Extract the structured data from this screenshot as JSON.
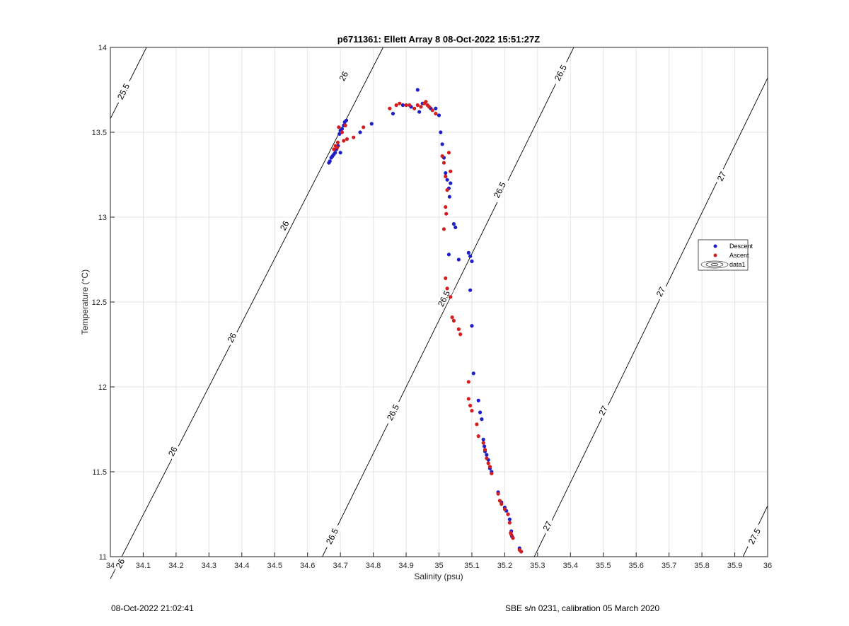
{
  "chart_data": {
    "type": "scatter",
    "title": "p6711361: Ellett Array 8 08-Oct-2022 15:51:27Z",
    "xlabel": "Salinity (psu)",
    "ylabel": "Temperature (°C)",
    "xlim": [
      34,
      36
    ],
    "ylim": [
      11,
      14
    ],
    "xticks": [
      34,
      34.1,
      34.2,
      34.3,
      34.4,
      34.5,
      34.6,
      34.7,
      34.8,
      34.9,
      35,
      35.1,
      35.2,
      35.3,
      35.4,
      35.5,
      35.6,
      35.7,
      35.8,
      35.9,
      36
    ],
    "xtick_labels": [
      "34",
      "34.1",
      "34.2",
      "34.3",
      "34.4",
      "34.5",
      "34.6",
      "34.7",
      "34.8",
      "34.9",
      "35",
      "35.1",
      "35.2",
      "35.3",
      "35.4",
      "35.5",
      "35.6",
      "35.7",
      "35.8",
      "35.9",
      "36"
    ],
    "yticks": [
      11,
      11.5,
      12,
      12.5,
      13,
      13.5,
      14
    ],
    "ytick_labels": [
      "11",
      "11.5",
      "12",
      "12.5",
      "13",
      "13.5",
      "14"
    ],
    "grid": true,
    "legend_placement": "right",
    "legend": [
      {
        "label": "Descent",
        "marker": "dot",
        "color": "#1f1fc8"
      },
      {
        "label": "Ascent",
        "marker": "dot",
        "color": "#d21e1e"
      },
      {
        "label": "data1",
        "marker": "contour"
      }
    ],
    "isopycnals": [
      {
        "level": 25.5,
        "label": "25.5",
        "points": [
          [
            34.0,
            13.58
          ],
          [
            34.11,
            14.0
          ]
        ]
      },
      {
        "level": 26,
        "label": "26",
        "points": [
          [
            34.0,
            10.87
          ],
          [
            34.83,
            14.0
          ]
        ]
      },
      {
        "level": 26.5,
        "label": "26.5",
        "points": [
          [
            34.645,
            11.0
          ],
          [
            35.41,
            14.0
          ]
        ]
      },
      {
        "level": 27,
        "label": "27",
        "points": [
          [
            35.29,
            11.0
          ],
          [
            36.0,
            13.82
          ]
        ]
      },
      {
        "level": 27.5,
        "label": "27.5",
        "points": [
          [
            35.925,
            11.0
          ],
          [
            36.0,
            11.3
          ]
        ]
      }
    ],
    "contour_labels": [
      {
        "text": "25.5",
        "at": [
          34.04,
          13.74
        ]
      },
      {
        "text": "26",
        "at": [
          34.03,
          10.96
        ]
      },
      {
        "text": "26",
        "at": [
          34.19,
          11.62
        ]
      },
      {
        "text": "26",
        "at": [
          34.37,
          12.29
        ]
      },
      {
        "text": "26",
        "at": [
          34.53,
          12.95
        ]
      },
      {
        "text": "26",
        "at": [
          34.71,
          13.83
        ]
      },
      {
        "text": "26.5",
        "at": [
          34.675,
          11.12
        ]
      },
      {
        "text": "26.5",
        "at": [
          34.86,
          11.85
        ]
      },
      {
        "text": "26.5",
        "at": [
          35.015,
          12.52
        ]
      },
      {
        "text": "26.5",
        "at": [
          35.185,
          13.16
        ]
      },
      {
        "text": "26.5",
        "at": [
          35.37,
          13.85
        ]
      },
      {
        "text": "27",
        "at": [
          35.33,
          11.18
        ]
      },
      {
        "text": "27",
        "at": [
          35.5,
          11.86
        ]
      },
      {
        "text": "27",
        "at": [
          35.675,
          12.56
        ]
      },
      {
        "text": "27",
        "at": [
          35.86,
          13.24
        ]
      },
      {
        "text": "27.5",
        "at": [
          35.96,
          11.12
        ]
      }
    ],
    "series": [
      {
        "name": "Descent",
        "color": "#1f1fc8",
        "points": [
          [
            34.665,
            13.32
          ],
          [
            34.668,
            13.33
          ],
          [
            34.672,
            13.35
          ],
          [
            34.676,
            13.36
          ],
          [
            34.68,
            13.37
          ],
          [
            34.684,
            13.38
          ],
          [
            34.688,
            13.4
          ],
          [
            34.693,
            13.42
          ],
          [
            34.7,
            13.38
          ],
          [
            34.697,
            13.49
          ],
          [
            34.7,
            13.51
          ],
          [
            34.705,
            13.52
          ],
          [
            34.71,
            13.54
          ],
          [
            34.713,
            13.56
          ],
          [
            34.718,
            13.57
          ],
          [
            34.76,
            13.5
          ],
          [
            34.795,
            13.55
          ],
          [
            34.86,
            13.61
          ],
          [
            34.89,
            13.66
          ],
          [
            34.915,
            13.65
          ],
          [
            34.935,
            13.75
          ],
          [
            34.94,
            13.62
          ],
          [
            34.95,
            13.67
          ],
          [
            34.975,
            13.64
          ],
          [
            34.99,
            13.64
          ],
          [
            35.0,
            13.6
          ],
          [
            35.005,
            13.5
          ],
          [
            35.01,
            13.43
          ],
          [
            35.015,
            13.35
          ],
          [
            35.02,
            13.26
          ],
          [
            35.025,
            13.22
          ],
          [
            35.03,
            13.17
          ],
          [
            35.035,
            13.2
          ],
          [
            35.032,
            13.12
          ],
          [
            35.045,
            12.96
          ],
          [
            35.05,
            12.94
          ],
          [
            35.03,
            12.78
          ],
          [
            35.06,
            12.75
          ],
          [
            35.09,
            12.79
          ],
          [
            35.095,
            12.77
          ],
          [
            35.1,
            12.74
          ],
          [
            35.095,
            12.57
          ],
          [
            35.1,
            12.36
          ],
          [
            35.105,
            12.08
          ],
          [
            35.12,
            11.92
          ],
          [
            35.125,
            11.85
          ],
          [
            35.13,
            11.81
          ],
          [
            35.135,
            11.69
          ],
          [
            35.138,
            11.65
          ],
          [
            35.14,
            11.62
          ],
          [
            35.145,
            11.6
          ],
          [
            35.15,
            11.57
          ],
          [
            35.155,
            11.52
          ],
          [
            35.16,
            11.5
          ],
          [
            35.18,
            11.38
          ],
          [
            35.19,
            11.32
          ],
          [
            35.2,
            11.29
          ],
          [
            35.205,
            11.27
          ],
          [
            35.21,
            11.25
          ],
          [
            35.215,
            11.22
          ],
          [
            35.22,
            11.15
          ],
          [
            35.222,
            11.12
          ],
          [
            35.245,
            11.05
          ],
          [
            35.25,
            11.03
          ]
        ]
      },
      {
        "name": "Ascent",
        "color": "#d21e1e",
        "points": [
          [
            34.68,
            13.4
          ],
          [
            34.685,
            13.42
          ],
          [
            34.69,
            13.41
          ],
          [
            34.692,
            13.44
          ],
          [
            34.695,
            13.53
          ],
          [
            34.705,
            13.5
          ],
          [
            34.71,
            13.45
          ],
          [
            34.715,
            13.54
          ],
          [
            34.72,
            13.46
          ],
          [
            34.74,
            13.47
          ],
          [
            34.77,
            13.53
          ],
          [
            34.85,
            13.64
          ],
          [
            34.87,
            13.66
          ],
          [
            34.88,
            13.67
          ],
          [
            34.9,
            13.66
          ],
          [
            34.91,
            13.66
          ],
          [
            34.925,
            13.64
          ],
          [
            34.935,
            13.66
          ],
          [
            34.945,
            13.65
          ],
          [
            34.955,
            13.67
          ],
          [
            34.96,
            13.68
          ],
          [
            34.965,
            13.66
          ],
          [
            34.97,
            13.65
          ],
          [
            34.98,
            13.63
          ],
          [
            34.99,
            13.61
          ],
          [
            35.01,
            13.36
          ],
          [
            35.015,
            13.32
          ],
          [
            35.02,
            13.24
          ],
          [
            35.025,
            13.16
          ],
          [
            35.03,
            13.38
          ],
          [
            35.035,
            13.27
          ],
          [
            35.02,
            13.06
          ],
          [
            35.022,
            13.02
          ],
          [
            35.015,
            12.93
          ],
          [
            35.02,
            12.64
          ],
          [
            35.025,
            12.58
          ],
          [
            35.035,
            12.53
          ],
          [
            35.04,
            12.41
          ],
          [
            35.045,
            12.39
          ],
          [
            35.06,
            12.34
          ],
          [
            35.065,
            12.31
          ],
          [
            35.09,
            12.03
          ],
          [
            35.09,
            11.93
          ],
          [
            35.095,
            11.89
          ],
          [
            35.1,
            11.86
          ],
          [
            35.115,
            11.78
          ],
          [
            35.12,
            11.71
          ],
          [
            35.135,
            11.67
          ],
          [
            35.14,
            11.63
          ],
          [
            35.145,
            11.58
          ],
          [
            35.15,
            11.55
          ],
          [
            35.155,
            11.53
          ],
          [
            35.16,
            11.49
          ],
          [
            35.18,
            11.37
          ],
          [
            35.185,
            11.33
          ],
          [
            35.19,
            11.31
          ],
          [
            35.2,
            11.28
          ],
          [
            35.21,
            11.25
          ],
          [
            35.215,
            11.2
          ],
          [
            35.218,
            11.14
          ],
          [
            35.22,
            11.13
          ],
          [
            35.225,
            11.11
          ],
          [
            35.245,
            11.04
          ],
          [
            35.25,
            11.03
          ]
        ]
      }
    ]
  },
  "footer": {
    "timestamp": "08-Oct-2022 21:02:41",
    "calibration": "SBE s/n 0231, calibration 05 March 2020"
  }
}
